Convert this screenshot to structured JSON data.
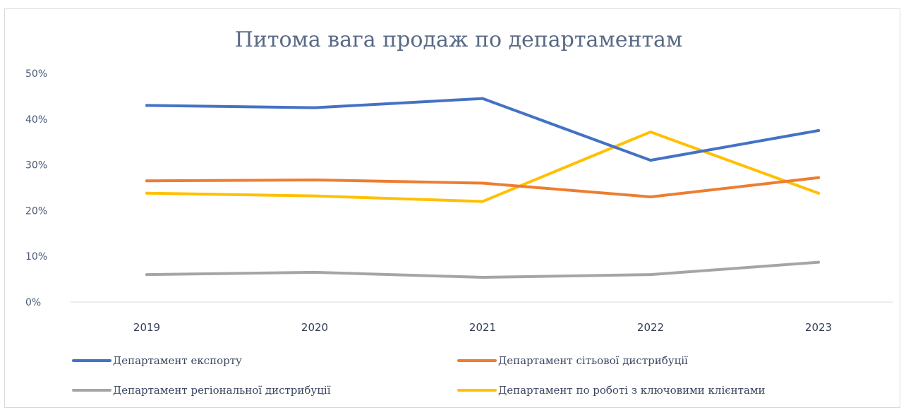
{
  "chart_data": {
    "type": "line",
    "title": "Питома вага продаж по департаментам",
    "xlabel": "",
    "ylabel": "",
    "categories": [
      "2019",
      "2020",
      "2021",
      "2022",
      "2023"
    ],
    "y_ticks": [
      "0%",
      "10%",
      "20%",
      "30%",
      "40%",
      "50%"
    ],
    "ylim": [
      0,
      50
    ],
    "grid": false,
    "legend_position": "bottom",
    "series": [
      {
        "name": "Департамент експорту",
        "color": "#4472c4",
        "values": [
          43,
          42.5,
          44.5,
          31,
          37.5
        ]
      },
      {
        "name": "Департамент сітьової дистрибуції",
        "color": "#ed7d31",
        "values": [
          26.5,
          26.7,
          26,
          23,
          27.2
        ]
      },
      {
        "name": "Департамент регіональної дистрибуції",
        "color": "#a5a5a5",
        "values": [
          6,
          6.5,
          5.4,
          6,
          8.7
        ]
      },
      {
        "name": "Департамент по роботі з ключовими клієнтами",
        "color": "#ffc000",
        "values": [
          23.8,
          23.2,
          22,
          37.2,
          23.8
        ]
      }
    ]
  }
}
